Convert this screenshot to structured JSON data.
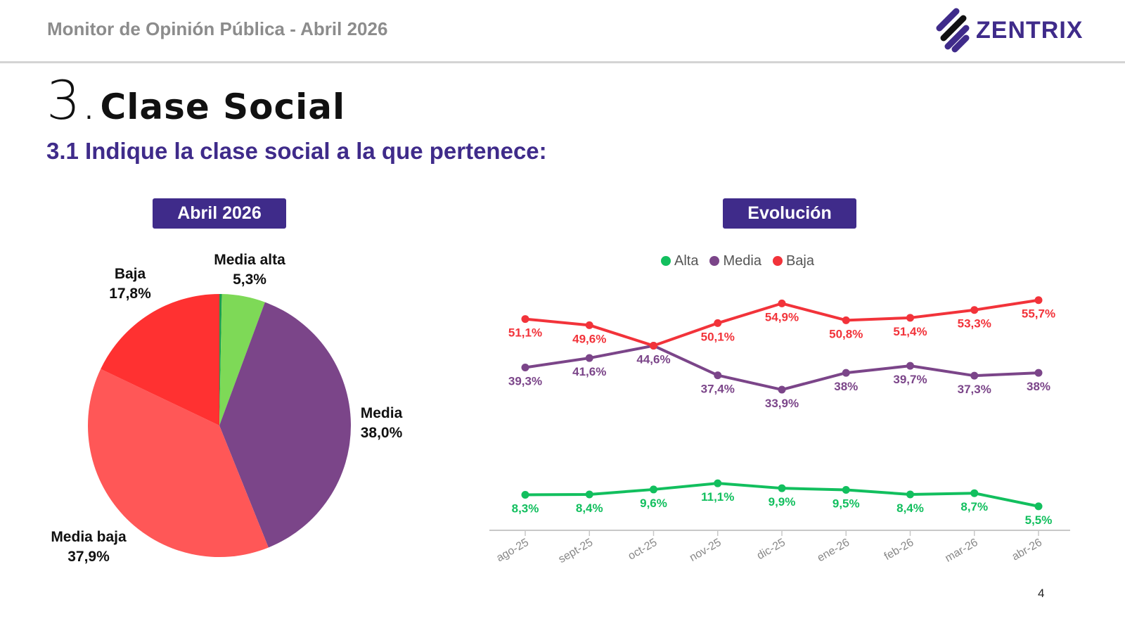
{
  "header": {
    "title": "Monitor de Opinión Pública - Abril 2026",
    "logo_text": "ZENTRIX"
  },
  "section": {
    "number": "3.",
    "title": "Clase Social",
    "subtitle": "3.1 Indique la clase social a la que pertenece:"
  },
  "page_number": "4",
  "colors": {
    "brand": "#3f2b8a"
  },
  "chart_data": [
    {
      "type": "pie",
      "title": "Abril 2026",
      "slices": [
        {
          "name": "",
          "value": 0.3,
          "label": "",
          "color": "#1f9e50"
        },
        {
          "name": "Media alta",
          "value": 5.3,
          "label": "5,3%",
          "color": "#7ed957"
        },
        {
          "name": "Media",
          "value": 38.0,
          "label": "38,0%",
          "color": "#7b4589"
        },
        {
          "name": "Media baja",
          "value": 37.9,
          "label": "37,9%",
          "color": "#ff5757"
        },
        {
          "name": "Baja",
          "value": 17.8,
          "label": "17,8%",
          "color": "#ff3131"
        }
      ]
    },
    {
      "type": "line",
      "title": "Evolución",
      "categories": [
        "ago-25",
        "sept-25",
        "oct-25",
        "nov-25",
        "dic-25",
        "ene-26",
        "feb-26",
        "mar-26",
        "abr-26"
      ],
      "ylim": [
        0,
        60
      ],
      "grid": false,
      "legend": "top-center",
      "series": [
        {
          "name": "Alta",
          "color": "#12bf5e",
          "values": [
            8.3,
            8.4,
            9.6,
            11.1,
            9.9,
            9.5,
            8.4,
            8.7,
            5.5
          ],
          "labels": [
            "8,3%",
            "8,4%",
            "9,6%",
            "11,1%",
            "9,9%",
            "9,5%",
            "8,4%",
            "8,7%",
            "5,5%"
          ]
        },
        {
          "name": "Media",
          "color": "#7b4589",
          "values": [
            39.3,
            41.6,
            44.6,
            37.4,
            33.9,
            38,
            39.7,
            37.3,
            38
          ],
          "labels": [
            "39,3%",
            "41,6%",
            "44,6%",
            "37,4%",
            "33,9%",
            "38%",
            "39,7%",
            "37,3%",
            "38%"
          ]
        },
        {
          "name": "Baja",
          "color": "#f2333a",
          "values": [
            51.1,
            49.6,
            44.6,
            50.1,
            54.9,
            50.8,
            51.4,
            53.3,
            55.7
          ],
          "labels": [
            "51,1%",
            "49,6%",
            "",
            "50,1%",
            "54,9%",
            "50,8%",
            "51,4%",
            "53,3%",
            "55,7%"
          ]
        }
      ]
    }
  ]
}
